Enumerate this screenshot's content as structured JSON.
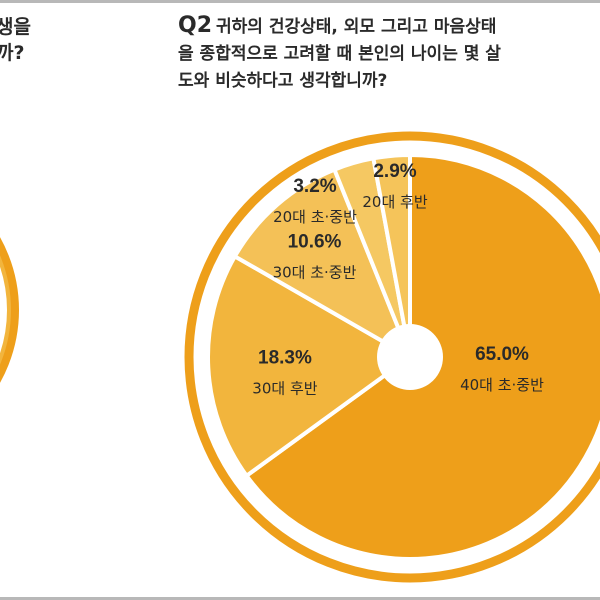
{
  "left_question": {
    "line1": "생을",
    "line2": "까?"
  },
  "question": {
    "number": "Q2",
    "line1": "귀하의 건강상태, 외모 그리고 마음상태",
    "line2": "을 종합적으로 고려할 때 본인의 나이는 몇 살",
    "line3": "도와 비슷하다고 생각합니까?"
  },
  "chart_data": {
    "type": "pie",
    "title": "귀하의 건강상태, 외모 그리고 마음상태을 종합적으로 고려할 때 본인의 나이는 몇 살도와 비슷하다고 생각합니까?",
    "slices": [
      {
        "label": "40대 초·중반",
        "value": 65.0,
        "value_label": "65.0%",
        "color": "#ee9f1a"
      },
      {
        "label": "30대 후반",
        "value": 18.3,
        "value_label": "18.3%",
        "color": "#f2b53d"
      },
      {
        "label": "30대 초·중반",
        "value": 10.6,
        "value_label": "10.6%",
        "color": "#f4c157"
      },
      {
        "label": "20대 초·중반",
        "value": 3.2,
        "value_label": "3.2%",
        "color": "#f5c862"
      },
      {
        "label": "20대 후반",
        "value": 2.9,
        "value_label": "2.9%",
        "color": "#f5c45a"
      }
    ],
    "ring_color": "#ee9f1a"
  }
}
